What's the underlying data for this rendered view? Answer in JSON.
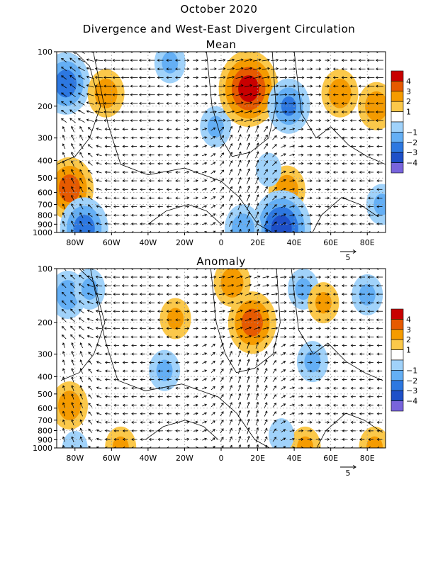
{
  "figure": {
    "title": "October 2020",
    "subtitle": "Divergence and West-East Divergent Circulation"
  },
  "chart_data": [
    {
      "type": "heatmap",
      "title": "Mean",
      "x_ticks": [
        "80W",
        "60W",
        "40W",
        "20W",
        "0",
        "20E",
        "40E",
        "60E",
        "80E"
      ],
      "x_tick_values": [
        -80,
        -60,
        -40,
        -20,
        0,
        20,
        40,
        60,
        80
      ],
      "xlim": [
        -90,
        90
      ],
      "y_ticks": [
        "100",
        "200",
        "300",
        "400",
        "500",
        "600",
        "700",
        "800",
        "900",
        "1000"
      ],
      "y_tick_values": [
        100,
        200,
        300,
        400,
        500,
        600,
        700,
        800,
        900,
        1000
      ],
      "ylim": [
        1000,
        100
      ],
      "y_scale": "log",
      "colorbar": {
        "labels": [
          "4",
          "3",
          "2",
          "1",
          "-1",
          "-2",
          "-3",
          "-4"
        ],
        "colors": [
          "#c80000",
          "#e65a00",
          "#f59b00",
          "#fbc84a",
          "#ffffff",
          "#a0d2fa",
          "#64aff5",
          "#2d78e1",
          "#1e50c8",
          "#7864dc"
        ]
      },
      "vector_reference": "5",
      "blobs": [
        {
          "lon": -85,
          "lev": 150,
          "value": -3
        },
        {
          "lon": -63,
          "lev": 170,
          "value": 2
        },
        {
          "lon": -28,
          "lev": 115,
          "value": -1.5
        },
        {
          "lon": -3,
          "lev": 260,
          "value": -1.5
        },
        {
          "lon": 15,
          "lev": 160,
          "value": 4
        },
        {
          "lon": 37,
          "lev": 200,
          "value": -2.5
        },
        {
          "lon": 65,
          "lev": 170,
          "value": 2
        },
        {
          "lon": 85,
          "lev": 200,
          "value": 2
        },
        {
          "lon": -83,
          "lev": 570,
          "value": 3
        },
        {
          "lon": -75,
          "lev": 950,
          "value": -3
        },
        {
          "lon": 36,
          "lev": 580,
          "value": 2
        },
        {
          "lon": 33,
          "lev": 950,
          "value": -4
        },
        {
          "lon": 88,
          "lev": 700,
          "value": -1.5
        },
        {
          "lon": 12,
          "lev": 950,
          "value": -2
        },
        {
          "lon": 26,
          "lev": 450,
          "value": -1
        }
      ]
    },
    {
      "type": "heatmap",
      "title": "Anomaly",
      "x_ticks": [
        "80W",
        "60W",
        "40W",
        "20W",
        "0",
        "20E",
        "40E",
        "60E",
        "80E"
      ],
      "x_tick_values": [
        -80,
        -60,
        -40,
        -20,
        0,
        20,
        40,
        60,
        80
      ],
      "xlim": [
        -90,
        90
      ],
      "y_ticks": [
        "100",
        "200",
        "300",
        "400",
        "500",
        "600",
        "700",
        "800",
        "900",
        "1000"
      ],
      "y_tick_values": [
        100,
        200,
        300,
        400,
        500,
        600,
        700,
        800,
        900,
        1000
      ],
      "ylim": [
        1000,
        100
      ],
      "y_scale": "log",
      "colorbar": {
        "labels": [
          "4",
          "3",
          "2",
          "1",
          "-1",
          "-2",
          "-3",
          "-4"
        ],
        "colors": [
          "#c80000",
          "#e65a00",
          "#f59b00",
          "#fbc84a",
          "#ffffff",
          "#a0d2fa",
          "#64aff5",
          "#2d78e1",
          "#1e50c8",
          "#7864dc"
        ]
      },
      "vector_reference": "5",
      "blobs": [
        {
          "lon": -84,
          "lev": 140,
          "value": -2
        },
        {
          "lon": -72,
          "lev": 130,
          "value": -1.5
        },
        {
          "lon": -25,
          "lev": 190,
          "value": 1.5
        },
        {
          "lon": 6,
          "lev": 120,
          "value": 2
        },
        {
          "lon": 17,
          "lev": 200,
          "value": 3
        },
        {
          "lon": 45,
          "lev": 130,
          "value": -1.5
        },
        {
          "lon": 56,
          "lev": 155,
          "value": 1.5
        },
        {
          "lon": 80,
          "lev": 140,
          "value": -1.5
        },
        {
          "lon": 50,
          "lev": 330,
          "value": -1.5
        },
        {
          "lon": -31,
          "lev": 370,
          "value": -1.5
        },
        {
          "lon": -83,
          "lev": 580,
          "value": 2
        },
        {
          "lon": -55,
          "lev": 990,
          "value": 1.5
        },
        {
          "lon": -80,
          "lev": 1000,
          "value": -1
        },
        {
          "lon": 46,
          "lev": 990,
          "value": 1.5
        },
        {
          "lon": 84,
          "lev": 990,
          "value": 1.5
        },
        {
          "lon": 33,
          "lev": 850,
          "value": -1
        }
      ]
    }
  ]
}
